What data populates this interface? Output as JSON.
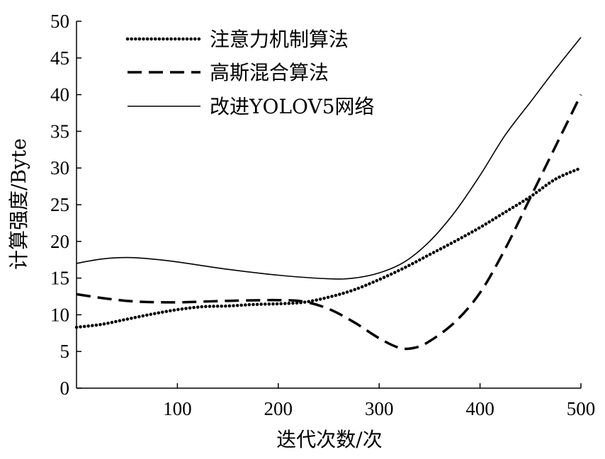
{
  "chart_data": {
    "type": "line",
    "xlabel": "迭代次数/次",
    "ylabel": "计算强度/Byte",
    "xlim": [
      0,
      500
    ],
    "ylim": [
      0,
      50
    ],
    "xticks": [
      100,
      200,
      300,
      400,
      500
    ],
    "yticks": [
      0,
      5,
      10,
      15,
      20,
      25,
      30,
      35,
      40,
      45,
      50
    ],
    "grid": false,
    "legend_position": "top-left",
    "series": [
      {
        "name": "注意力机制算法",
        "style": "dotted",
        "points": [
          [
            0,
            8.3
          ],
          [
            25,
            8.7
          ],
          [
            50,
            9.4
          ],
          [
            75,
            10.1
          ],
          [
            100,
            10.7
          ],
          [
            125,
            11.1
          ],
          [
            150,
            11.2
          ],
          [
            175,
            11.4
          ],
          [
            200,
            11.5
          ],
          [
            225,
            11.7
          ],
          [
            250,
            12.4
          ],
          [
            275,
            13.4
          ],
          [
            300,
            14.8
          ],
          [
            325,
            16.4
          ],
          [
            350,
            18.2
          ],
          [
            375,
            20.0
          ],
          [
            400,
            21.9
          ],
          [
            425,
            24.0
          ],
          [
            450,
            26.1
          ],
          [
            475,
            28.5
          ],
          [
            500,
            30.0
          ]
        ]
      },
      {
        "name": "高斯混合算法",
        "style": "dashed",
        "points": [
          [
            0,
            12.8
          ],
          [
            30,
            12.2
          ],
          [
            60,
            11.8
          ],
          [
            100,
            11.7
          ],
          [
            150,
            11.9
          ],
          [
            200,
            12.0
          ],
          [
            225,
            11.8
          ],
          [
            250,
            10.8
          ],
          [
            275,
            9.0
          ],
          [
            300,
            6.8
          ],
          [
            320,
            5.5
          ],
          [
            335,
            5.5
          ],
          [
            350,
            6.4
          ],
          [
            375,
            9.0
          ],
          [
            400,
            13.0
          ],
          [
            425,
            19.0
          ],
          [
            450,
            26.0
          ],
          [
            475,
            33.0
          ],
          [
            500,
            40.0
          ]
        ]
      },
      {
        "name": "改进YOLOV5网络",
        "style": "solid",
        "points": [
          [
            0,
            17.0
          ],
          [
            25,
            17.6
          ],
          [
            50,
            17.8
          ],
          [
            75,
            17.6
          ],
          [
            100,
            17.2
          ],
          [
            150,
            16.2
          ],
          [
            200,
            15.4
          ],
          [
            250,
            14.9
          ],
          [
            275,
            15.0
          ],
          [
            300,
            15.7
          ],
          [
            325,
            17.2
          ],
          [
            350,
            20.0
          ],
          [
            375,
            24.0
          ],
          [
            400,
            29.0
          ],
          [
            425,
            34.5
          ],
          [
            450,
            39.0
          ],
          [
            475,
            43.5
          ],
          [
            500,
            47.8
          ]
        ]
      }
    ]
  }
}
